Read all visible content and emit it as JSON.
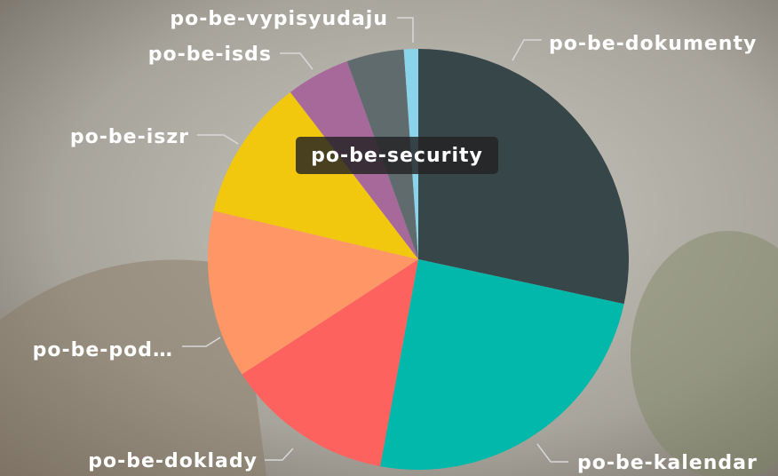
{
  "chart_data": {
    "type": "pie",
    "categories": [
      "po-be-dokumenty",
      "po-be-kalendar",
      "po-be-doklady",
      "po-be-pod…",
      "po-be-iszr",
      "po-be-isds",
      "po-be-security",
      "po-be-vypisyudaju"
    ],
    "values": [
      28.4,
      24.5,
      12.9,
      12.9,
      10.9,
      4.9,
      4.4,
      1.1
    ],
    "colors": [
      "#374649",
      "#01B8AA",
      "#FD625E",
      "#FE9666",
      "#F2C80F",
      "#A66999",
      "#5F6B6D",
      "#8AD4EB"
    ],
    "tooltip": "po-be-security"
  }
}
